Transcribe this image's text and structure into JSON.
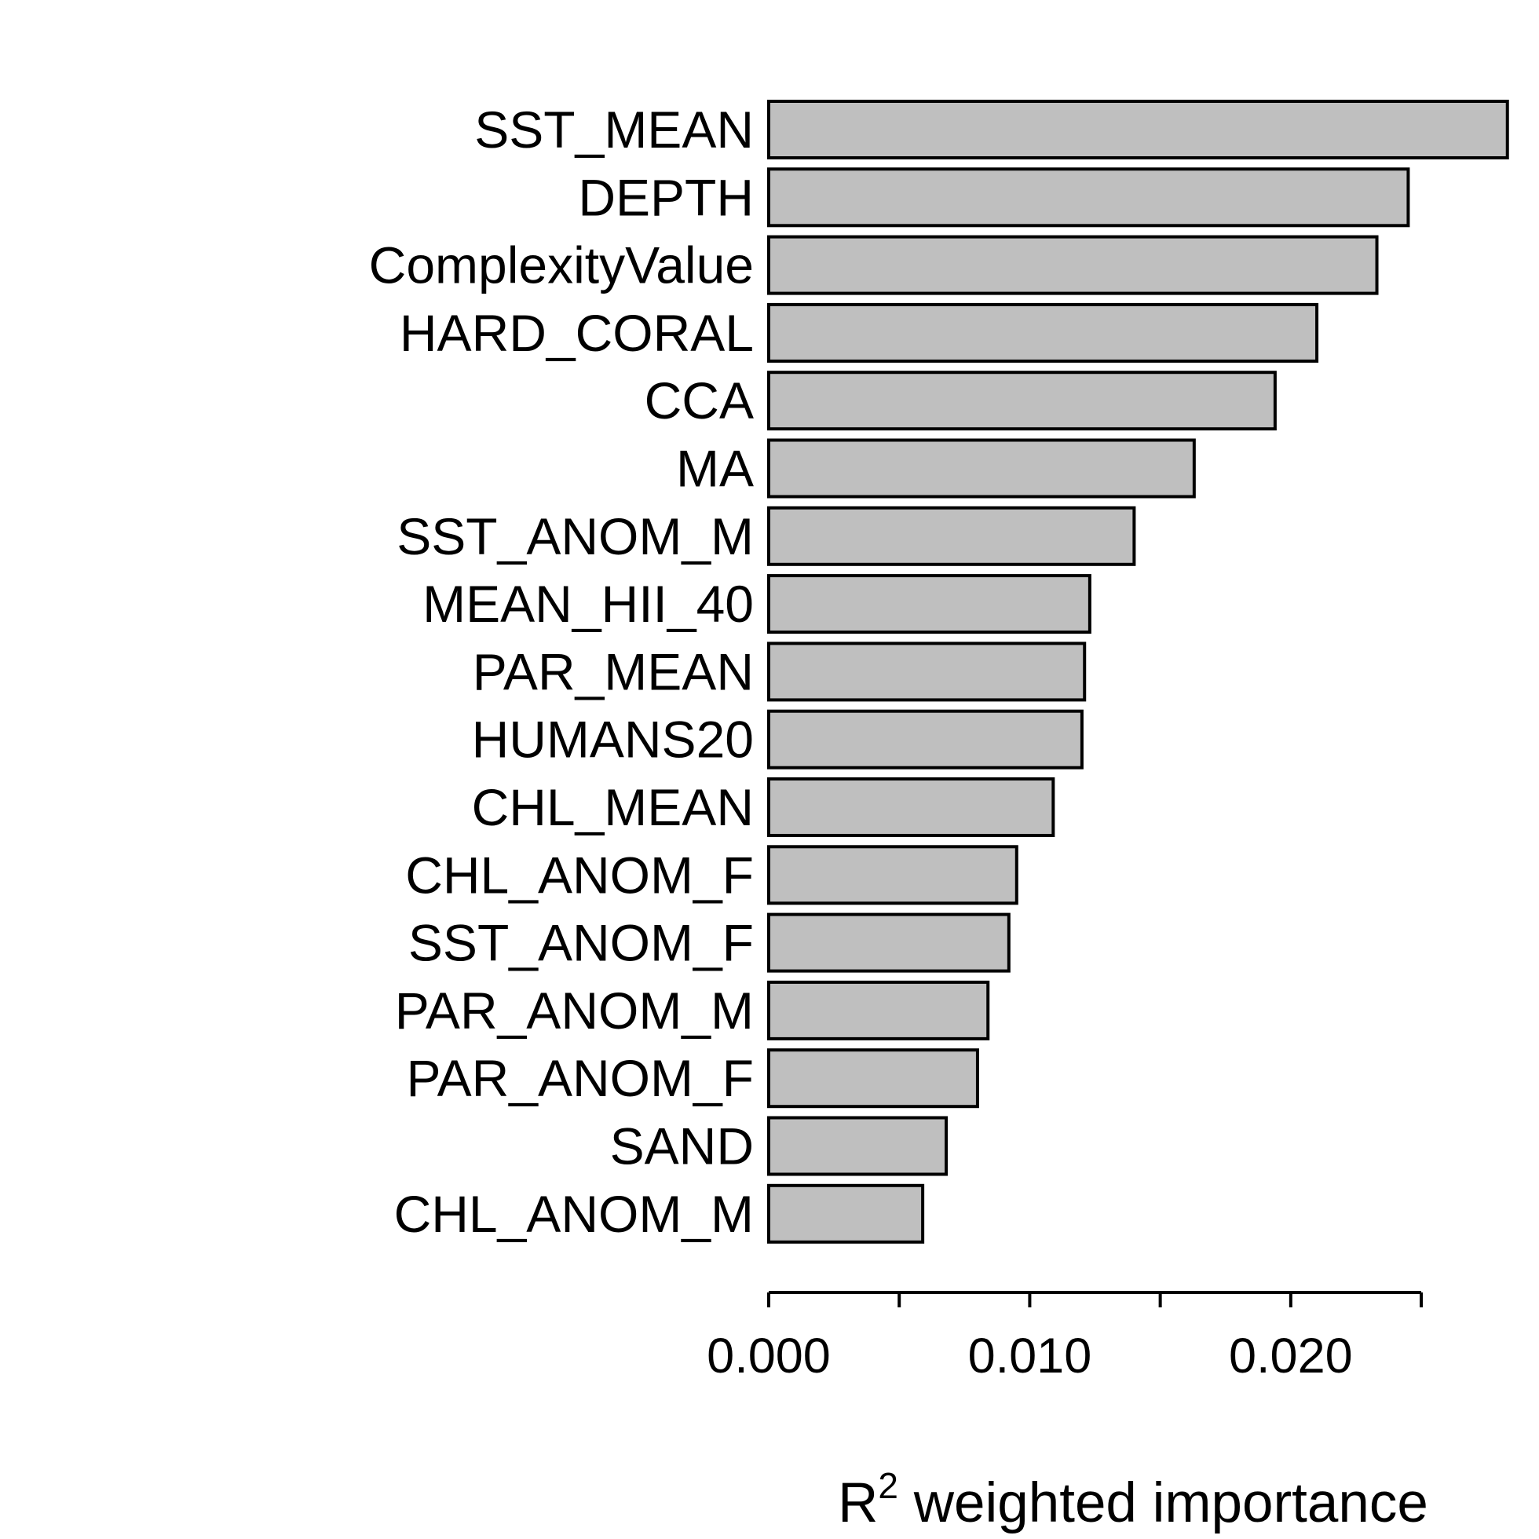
{
  "chart_data": {
    "type": "bar",
    "orientation": "horizontal",
    "categories": [
      "SST_MEAN",
      "DEPTH",
      "ComplexityValue",
      "HARD_CORAL",
      "CCA",
      "MA",
      "SST_ANOM_M",
      "MEAN_HII_40",
      "PAR_MEAN",
      "HUMANS20",
      "CHL_MEAN",
      "CHL_ANOM_F",
      "SST_ANOM_F",
      "PAR_ANOM_M",
      "PAR_ANOM_F",
      "SAND",
      "CHL_ANOM_M"
    ],
    "values": [
      0.0283,
      0.0245,
      0.0233,
      0.021,
      0.0194,
      0.0163,
      0.014,
      0.0123,
      0.0121,
      0.012,
      0.0109,
      0.0095,
      0.0092,
      0.0084,
      0.008,
      0.0068,
      0.0059
    ],
    "color": "#bfbfbf",
    "xlim": [
      0,
      0.025
    ],
    "xticks": [
      {
        "value": 0,
        "label": "0.000"
      },
      {
        "value": 0.01,
        "label": "0.010"
      },
      {
        "value": 0.02,
        "label": "0.020"
      }
    ],
    "xminor_ticks": [
      0.005,
      0.015,
      0.025
    ],
    "x_label": {
      "base": "R",
      "superscript": "2",
      "rest": " weighted importance"
    },
    "grid": false
  }
}
